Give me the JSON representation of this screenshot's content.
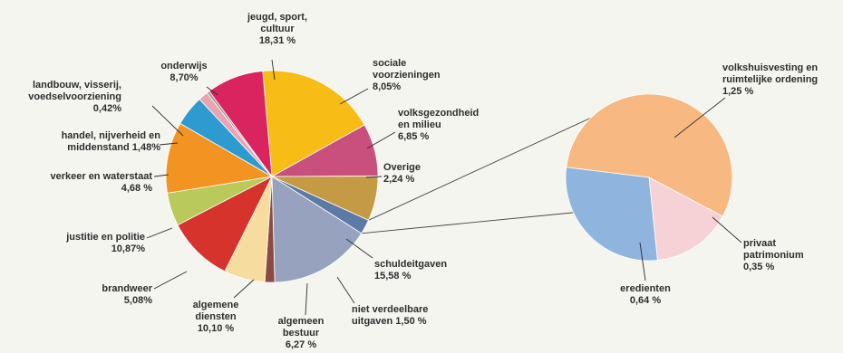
{
  "chart_data": [
    {
      "type": "pie",
      "slices": [
        {
          "label": [
            "jeugd, sport,",
            "cultuur",
            "18,31 %"
          ],
          "value": 18.31,
          "color": "#f8bc16"
        },
        {
          "label": [
            "sociale",
            "voorzieningen",
            "8,05%"
          ],
          "value": 8.05,
          "color": "#c94f7c"
        },
        {
          "label": [
            "volksgezondheid",
            "en milieu",
            "6,85 %"
          ],
          "value": 6.85,
          "color": "#c59a45"
        },
        {
          "label": [
            "Overige",
            "2,24 %"
          ],
          "value": 2.24,
          "color": "#5b7aa8"
        },
        {
          "label": [
            "schuldeitgaven",
            "15,58 %"
          ],
          "value": 15.58,
          "color": "#97a3be"
        },
        {
          "label": [
            "niet verdeelbare",
            "uitgaven 1,50 %"
          ],
          "value": 1.5,
          "color": "#8b4b43"
        },
        {
          "label": [
            "algemeen",
            "bestuur",
            "6,27 %"
          ],
          "value": 6.27,
          "color": "#f7dca0"
        },
        {
          "label": [
            "algemene",
            "diensten",
            "10,10 %"
          ],
          "value": 10.1,
          "color": "#d6332d"
        },
        {
          "label": [
            "brandweer",
            "5,08%"
          ],
          "value": 5.08,
          "color": "#b9c95a"
        },
        {
          "label": [
            "justitie en politie",
            "10,87%"
          ],
          "value": 10.87,
          "color": "#f39422"
        },
        {
          "label": [
            "verkeer en waterstaat",
            "4,68 %"
          ],
          "value": 4.68,
          "color": "#2d9bd0"
        },
        {
          "label": [
            "handel, nijverheid en",
            "middenstand 1,48%"
          ],
          "value": 1.48,
          "color": "#e8a4b0"
        },
        {
          "label": [
            "landbouw, visserij,",
            "voedselvoorziening",
            "0,42%"
          ],
          "value": 0.42,
          "color": "#9a9a9a"
        },
        {
          "label": [
            "onderwijs",
            "8,70%"
          ],
          "value": 8.7,
          "color": "#d9245f"
        }
      ]
    },
    {
      "type": "pie",
      "slices": [
        {
          "label": [
            "volkshuisvesting en",
            "ruimtelijke ordening",
            "1,25 %"
          ],
          "value": 1.25,
          "color": "#f8b882"
        },
        {
          "label": [
            "privaat",
            "patrimonium",
            "0,35 %"
          ],
          "value": 0.35,
          "color": "#f6d2d6"
        },
        {
          "label": [
            "eredienten",
            "0,64 %"
          ],
          "value": 0.64,
          "color": "#8fb4dd"
        }
      ]
    }
  ]
}
